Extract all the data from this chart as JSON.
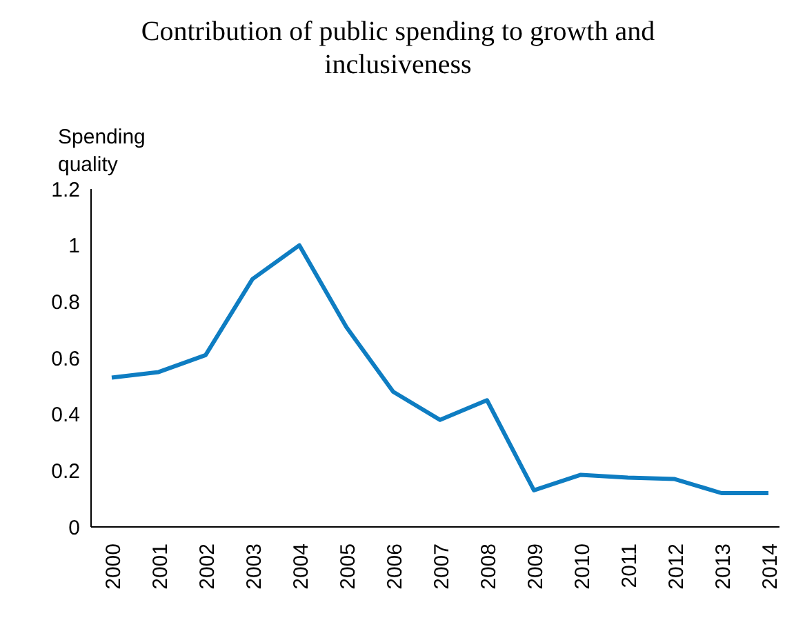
{
  "chart_data": {
    "type": "line",
    "title": "Contribution of public spending to growth and inclusiveness",
    "ylabel": "Spending quality",
    "categories": [
      "2000",
      "2001",
      "2002",
      "2003",
      "2004",
      "2005",
      "2006",
      "2007",
      "2008",
      "2009",
      "2010",
      "2011",
      "2012",
      "2013",
      "2014"
    ],
    "series": [
      {
        "color": "#0e7dc2",
        "values": [
          0.53,
          0.55,
          0.61,
          0.88,
          1.0,
          0.71,
          0.48,
          0.38,
          0.45,
          0.13,
          0.185,
          0.175,
          0.17,
          0.12,
          0.12
        ]
      }
    ],
    "ylim": [
      0,
      1.2
    ],
    "yticks": [
      0,
      0.2,
      0.4,
      0.6,
      0.8,
      1,
      1.2
    ],
    "grid": false,
    "legend": false,
    "marker": "none",
    "line_style": "solid"
  }
}
